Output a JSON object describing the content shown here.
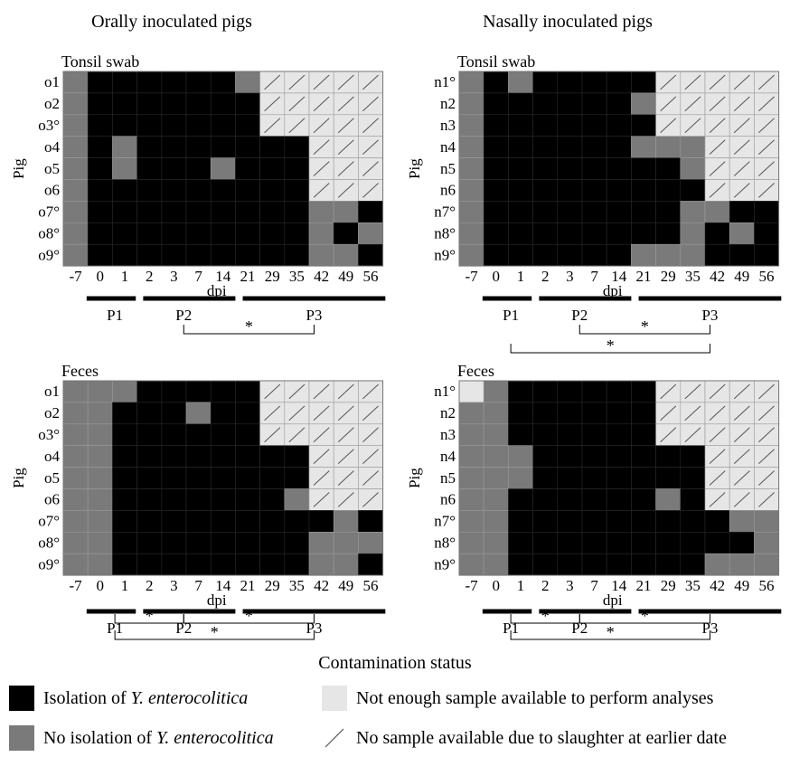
{
  "legend": {
    "title": "Contamination status",
    "items": [
      {
        "key": "pos",
        "prefix": "Isolation of ",
        "italic": "Y. enterocolitica",
        "suffix": ""
      },
      {
        "key": "neg",
        "prefix": "No isolation of ",
        "italic": "Y. enterocolitica",
        "suffix": ""
      },
      {
        "key": "ne",
        "prefix": "Not enough sample available to perform analyses",
        "italic": "",
        "suffix": ""
      },
      {
        "key": "ns",
        "prefix": "No sample available  due to slaughter at earlier date",
        "italic": "",
        "suffix": ""
      }
    ]
  },
  "colors": {
    "pos": "#000000",
    "neg": "#7a7a7a",
    "ne": "#e6e6e6",
    "ns": "#e6e6e6"
  },
  "column_titles": [
    "Orally inoculated pigs",
    "Nasally inoculated pigs"
  ],
  "chart_data": [
    {
      "type": "heatmap",
      "group": "Orally inoculated pigs",
      "title": "Tonsil swab",
      "xlabel": "dpi",
      "ylabel": "Pig",
      "x": [
        "-7",
        "0",
        "1",
        "2",
        "3",
        "7",
        "14",
        "21",
        "29",
        "35",
        "42",
        "49",
        "56"
      ],
      "y": [
        "o1",
        "o2",
        "o3°",
        "o4",
        "o5",
        "o6",
        "o7°",
        "o8°",
        "o9°"
      ],
      "grid": [
        "gPPPPPPgSSSSS",
        "gPPPPPPPSSSSS",
        "gPPPPPPPSSSSS",
        "gPgPPPPPPPSSS",
        "gPgPPPgPPPSSS",
        "gPPPPPPPPPSSS",
        "gPPPPPPPPPggP",
        "gPPPPPPPPPgPg",
        "gPPPPPPPPPggP"
      ],
      "periods": [
        "P1",
        "P2",
        "P3"
      ],
      "significance": [
        {
          "from": "P2",
          "to": "P3",
          "label": "*"
        }
      ]
    },
    {
      "type": "heatmap",
      "group": "Nasally inoculated pigs",
      "title": "Tonsil swab",
      "xlabel": "dpi",
      "ylabel": "Pig",
      "x": [
        "-7",
        "0",
        "1",
        "2",
        "3",
        "7",
        "14",
        "21",
        "29",
        "35",
        "42",
        "49",
        "56"
      ],
      "y": [
        "n1°",
        "n2",
        "n3",
        "n4",
        "n5",
        "n6",
        "n7°",
        "n8°",
        "n9°"
      ],
      "grid": [
        "gPgPPPPPSSSSS",
        "gPPPPPPgSSSSS",
        "gPPPPPPPSSSSS",
        "gPPPPPPgggSSS",
        "gPPPPPPPPgSSS",
        "gPPPPPPPPPSSS",
        "gPPPPPPPPggPP",
        "gPPPPPPPPgPgP",
        "gPPPPPPgggPPP"
      ],
      "periods": [
        "P1",
        "P2",
        "P3"
      ],
      "significance": [
        {
          "from": "P2",
          "to": "P3",
          "label": "*"
        },
        {
          "from": "P1",
          "to": "P3",
          "label": "*"
        }
      ]
    },
    {
      "type": "heatmap",
      "group": "Orally inoculated pigs",
      "title": "Feces",
      "xlabel": "dpi",
      "ylabel": "Pig",
      "x": [
        "-7",
        "0",
        "1",
        "2",
        "3",
        "7",
        "14",
        "21",
        "29",
        "35",
        "42",
        "49",
        "56"
      ],
      "y": [
        "o1",
        "o2",
        "o3°",
        "o4",
        "o5",
        "o6",
        "o7°",
        "o8°",
        "o9°"
      ],
      "grid": [
        "gggPPPPPSSSSS",
        "ggPPPgPPSSSSS",
        "ggPPPPPPSSSSS",
        "ggPPPPPPPPSSS",
        "ggPPPPPPPPSSS",
        "ggPPPPPPPgSSS",
        "ggPPPPPPPPPgP",
        "ggPPPPPPPPggg",
        "ggPPPPPPPPggP"
      ],
      "periods": [
        "P1",
        "P2",
        "P3"
      ],
      "significance": [
        {
          "from": "P1",
          "to": "P2",
          "label": "*"
        },
        {
          "from": "P2",
          "to": "P3",
          "label": "*"
        },
        {
          "from": "P1",
          "to": "P3",
          "label": "*"
        }
      ]
    },
    {
      "type": "heatmap",
      "group": "Nasally inoculated pigs",
      "title": "Feces",
      "xlabel": "dpi",
      "ylabel": "Pig",
      "x": [
        "-7",
        "0",
        "1",
        "2",
        "3",
        "7",
        "14",
        "21",
        "29",
        "35",
        "42",
        "49",
        "56"
      ],
      "y": [
        "n1°",
        "n2",
        "n3",
        "n4",
        "n5",
        "n6",
        "n7°",
        "n8°",
        "n9°"
      ],
      "grid": [
        "NgPPPPPPSSSSS",
        "ggPPPPPPSSSSS",
        "ggPPPPPPSSSSS",
        "gggPPPPPPPSSS",
        "gggPPPPPPPSSS",
        "ggPPPPPPgPSSS",
        "ggPPPPPPPPPgg",
        "ggPPPPPPPPPPg",
        "ggPPPPPPPPggg"
      ],
      "periods": [
        "P1",
        "P2",
        "P3"
      ],
      "significance": [
        {
          "from": "P1",
          "to": "P2",
          "label": "*"
        },
        {
          "from": "P2",
          "to": "P3",
          "label": "*"
        },
        {
          "from": "P1",
          "to": "P3",
          "label": "*"
        }
      ]
    }
  ]
}
